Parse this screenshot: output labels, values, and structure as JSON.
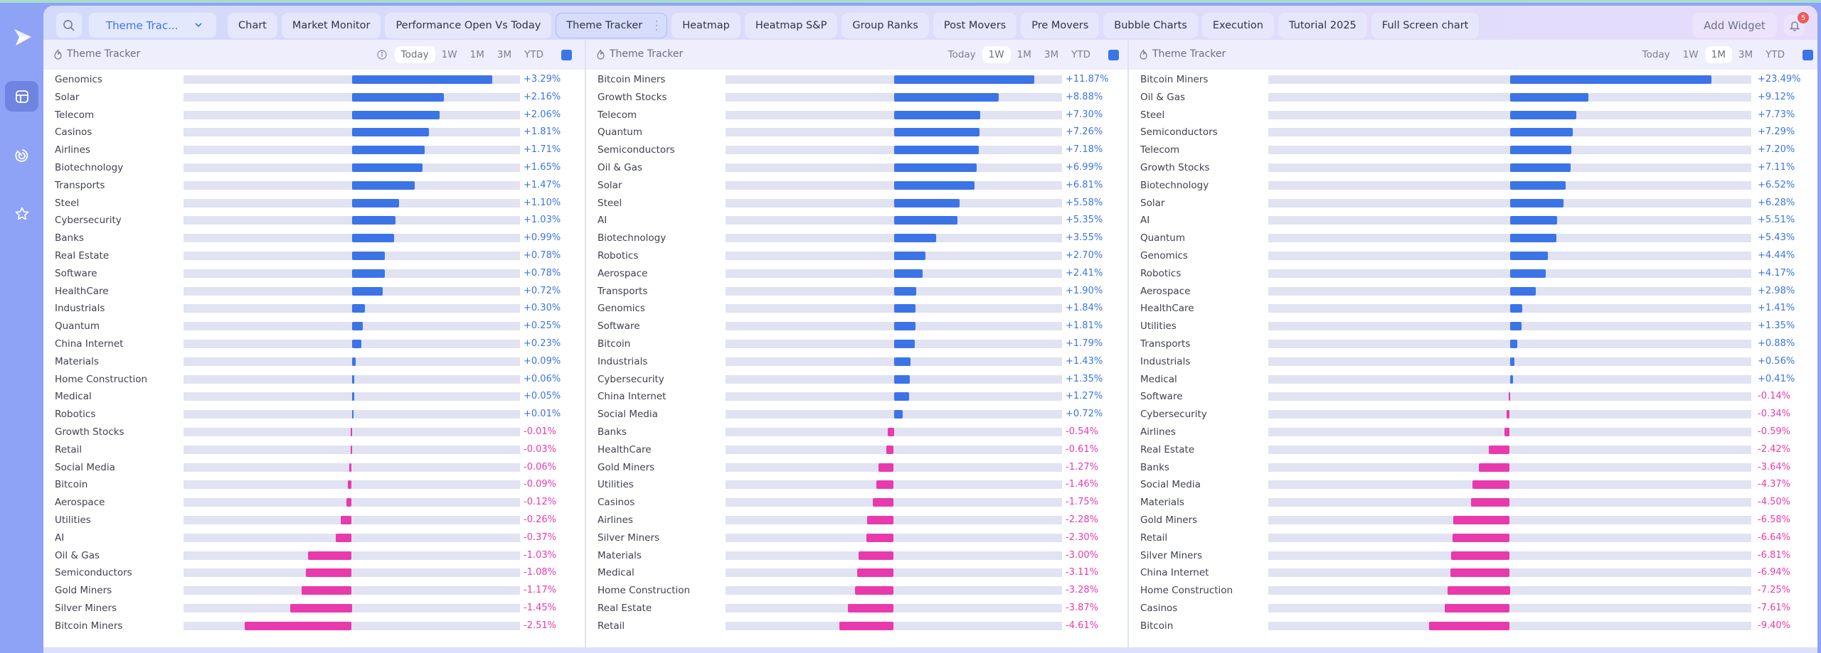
{
  "colors": {
    "positive": "#3b74e6",
    "negative": "#e83aad",
    "accent": "#3d74e6",
    "track": "#e1e2f2",
    "badge": "#ef5a5a"
  },
  "sidebar": {
    "logo": "play-logo-icon",
    "items": [
      {
        "icon": "layout-grid-icon",
        "active": true
      },
      {
        "icon": "radar-icon",
        "active": false
      },
      {
        "icon": "star-icon",
        "active": false
      }
    ]
  },
  "header": {
    "search_icon": "search-icon",
    "dropdown_label": "Theme Trac...",
    "tabs": [
      {
        "label": "Chart"
      },
      {
        "label": "Market Monitor"
      },
      {
        "label": "Performance Open Vs Today"
      },
      {
        "label": "Theme Tracker",
        "active": true
      },
      {
        "label": "Heatmap"
      },
      {
        "label": "Heatmap S&P"
      },
      {
        "label": "Group Ranks"
      },
      {
        "label": "Post Movers"
      },
      {
        "label": "Pre Movers"
      },
      {
        "label": "Bubble Charts"
      },
      {
        "label": "Execution"
      },
      {
        "label": "Tutorial 2025"
      },
      {
        "label": "Full Screen chart"
      }
    ],
    "add_widget_label": "Add Widget",
    "notification_count": "5"
  },
  "panels": [
    {
      "title": "Theme Tracker",
      "periods": [
        "Today",
        "1W",
        "1M",
        "3M",
        "YTD"
      ],
      "active_period": "Today",
      "show_info": true,
      "rows": [
        {
          "name": "Genomics",
          "value": 3.29,
          "label": "+3.29%"
        },
        {
          "name": "Solar",
          "value": 2.16,
          "label": "+2.16%"
        },
        {
          "name": "Telecom",
          "value": 2.06,
          "label": "+2.06%"
        },
        {
          "name": "Casinos",
          "value": 1.81,
          "label": "+1.81%"
        },
        {
          "name": "Airlines",
          "value": 1.71,
          "label": "+1.71%"
        },
        {
          "name": "Biotechnology",
          "value": 1.65,
          "label": "+1.65%"
        },
        {
          "name": "Transports",
          "value": 1.47,
          "label": "+1.47%"
        },
        {
          "name": "Steel",
          "value": 1.1,
          "label": "+1.10%"
        },
        {
          "name": "Cybersecurity",
          "value": 1.03,
          "label": "+1.03%"
        },
        {
          "name": "Banks",
          "value": 0.99,
          "label": "+0.99%"
        },
        {
          "name": "Real Estate",
          "value": 0.78,
          "label": "+0.78%"
        },
        {
          "name": "Software",
          "value": 0.78,
          "label": "+0.78%"
        },
        {
          "name": "HealthCare",
          "value": 0.72,
          "label": "+0.72%"
        },
        {
          "name": "Industrials",
          "value": 0.3,
          "label": "+0.30%"
        },
        {
          "name": "Quantum",
          "value": 0.25,
          "label": "+0.25%"
        },
        {
          "name": "China Internet",
          "value": 0.23,
          "label": "+0.23%"
        },
        {
          "name": "Materials",
          "value": 0.09,
          "label": "+0.09%"
        },
        {
          "name": "Home Construction",
          "value": 0.06,
          "label": "+0.06%"
        },
        {
          "name": "Medical",
          "value": 0.05,
          "label": "+0.05%"
        },
        {
          "name": "Robotics",
          "value": 0.01,
          "label": "+0.01%"
        },
        {
          "name": "Growth Stocks",
          "value": -0.01,
          "label": "-0.01%"
        },
        {
          "name": "Retail",
          "value": -0.03,
          "label": "-0.03%"
        },
        {
          "name": "Social Media",
          "value": -0.06,
          "label": "-0.06%"
        },
        {
          "name": "Bitcoin",
          "value": -0.09,
          "label": "-0.09%"
        },
        {
          "name": "Aerospace",
          "value": -0.12,
          "label": "-0.12%"
        },
        {
          "name": "Utilities",
          "value": -0.26,
          "label": "-0.26%"
        },
        {
          "name": "AI",
          "value": -0.37,
          "label": "-0.37%"
        },
        {
          "name": "Oil & Gas",
          "value": -1.03,
          "label": "-1.03%"
        },
        {
          "name": "Semiconductors",
          "value": -1.08,
          "label": "-1.08%"
        },
        {
          "name": "Gold Miners",
          "value": -1.17,
          "label": "-1.17%"
        },
        {
          "name": "Silver Miners",
          "value": -1.45,
          "label": "-1.45%"
        },
        {
          "name": "Bitcoin Miners",
          "value": -2.51,
          "label": "-2.51%"
        }
      ]
    },
    {
      "title": "Theme Tracker",
      "periods": [
        "Today",
        "1W",
        "1M",
        "3M",
        "YTD"
      ],
      "active_period": "1W",
      "show_info": false,
      "rows": [
        {
          "name": "Bitcoin Miners",
          "value": 11.87,
          "label": "+11.87%"
        },
        {
          "name": "Growth Stocks",
          "value": 8.88,
          "label": "+8.88%"
        },
        {
          "name": "Telecom",
          "value": 7.3,
          "label": "+7.30%"
        },
        {
          "name": "Quantum",
          "value": 7.26,
          "label": "+7.26%"
        },
        {
          "name": "Semiconductors",
          "value": 7.18,
          "label": "+7.18%"
        },
        {
          "name": "Oil & Gas",
          "value": 6.99,
          "label": "+6.99%"
        },
        {
          "name": "Solar",
          "value": 6.81,
          "label": "+6.81%"
        },
        {
          "name": "Steel",
          "value": 5.58,
          "label": "+5.58%"
        },
        {
          "name": "AI",
          "value": 5.35,
          "label": "+5.35%"
        },
        {
          "name": "Biotechnology",
          "value": 3.55,
          "label": "+3.55%"
        },
        {
          "name": "Robotics",
          "value": 2.7,
          "label": "+2.70%"
        },
        {
          "name": "Aerospace",
          "value": 2.41,
          "label": "+2.41%"
        },
        {
          "name": "Transports",
          "value": 1.9,
          "label": "+1.90%"
        },
        {
          "name": "Genomics",
          "value": 1.84,
          "label": "+1.84%"
        },
        {
          "name": "Software",
          "value": 1.81,
          "label": "+1.81%"
        },
        {
          "name": "Bitcoin",
          "value": 1.79,
          "label": "+1.79%"
        },
        {
          "name": "Industrials",
          "value": 1.43,
          "label": "+1.43%"
        },
        {
          "name": "Cybersecurity",
          "value": 1.35,
          "label": "+1.35%"
        },
        {
          "name": "China Internet",
          "value": 1.27,
          "label": "+1.27%"
        },
        {
          "name": "Social Media",
          "value": 0.72,
          "label": "+0.72%"
        },
        {
          "name": "Banks",
          "value": -0.54,
          "label": "-0.54%"
        },
        {
          "name": "HealthCare",
          "value": -0.61,
          "label": "-0.61%"
        },
        {
          "name": "Gold Miners",
          "value": -1.27,
          "label": "-1.27%"
        },
        {
          "name": "Utilities",
          "value": -1.46,
          "label": "-1.46%"
        },
        {
          "name": "Casinos",
          "value": -1.75,
          "label": "-1.75%"
        },
        {
          "name": "Airlines",
          "value": -2.28,
          "label": "-2.28%"
        },
        {
          "name": "Silver Miners",
          "value": -2.3,
          "label": "-2.30%"
        },
        {
          "name": "Materials",
          "value": -3.0,
          "label": "-3.00%"
        },
        {
          "name": "Medical",
          "value": -3.11,
          "label": "-3.11%"
        },
        {
          "name": "Home Construction",
          "value": -3.28,
          "label": "-3.28%"
        },
        {
          "name": "Real Estate",
          "value": -3.87,
          "label": "-3.87%"
        },
        {
          "name": "Retail",
          "value": -4.61,
          "label": "-4.61%"
        }
      ]
    },
    {
      "title": "Theme Tracker",
      "periods": [
        "Today",
        "1W",
        "1M",
        "3M",
        "YTD"
      ],
      "active_period": "1M",
      "show_info": false,
      "rows": [
        {
          "name": "Bitcoin Miners",
          "value": 23.49,
          "label": "+23.49%"
        },
        {
          "name": "Oil & Gas",
          "value": 9.12,
          "label": "+9.12%"
        },
        {
          "name": "Steel",
          "value": 7.73,
          "label": "+7.73%"
        },
        {
          "name": "Semiconductors",
          "value": 7.29,
          "label": "+7.29%"
        },
        {
          "name": "Telecom",
          "value": 7.2,
          "label": "+7.20%"
        },
        {
          "name": "Growth Stocks",
          "value": 7.11,
          "label": "+7.11%"
        },
        {
          "name": "Biotechnology",
          "value": 6.52,
          "label": "+6.52%"
        },
        {
          "name": "Solar",
          "value": 6.28,
          "label": "+6.28%"
        },
        {
          "name": "AI",
          "value": 5.51,
          "label": "+5.51%"
        },
        {
          "name": "Quantum",
          "value": 5.43,
          "label": "+5.43%"
        },
        {
          "name": "Genomics",
          "value": 4.44,
          "label": "+4.44%"
        },
        {
          "name": "Robotics",
          "value": 4.17,
          "label": "+4.17%"
        },
        {
          "name": "Aerospace",
          "value": 2.98,
          "label": "+2.98%"
        },
        {
          "name": "HealthCare",
          "value": 1.41,
          "label": "+1.41%"
        },
        {
          "name": "Utilities",
          "value": 1.35,
          "label": "+1.35%"
        },
        {
          "name": "Transports",
          "value": 0.88,
          "label": "+0.88%"
        },
        {
          "name": "Industrials",
          "value": 0.56,
          "label": "+0.56%"
        },
        {
          "name": "Medical",
          "value": 0.41,
          "label": "+0.41%"
        },
        {
          "name": "Software",
          "value": -0.14,
          "label": "-0.14%"
        },
        {
          "name": "Cybersecurity",
          "value": -0.34,
          "label": "-0.34%"
        },
        {
          "name": "Airlines",
          "value": -0.59,
          "label": "-0.59%"
        },
        {
          "name": "Real Estate",
          "value": -2.42,
          "label": "-2.42%"
        },
        {
          "name": "Banks",
          "value": -3.64,
          "label": "-3.64%"
        },
        {
          "name": "Social Media",
          "value": -4.37,
          "label": "-4.37%"
        },
        {
          "name": "Materials",
          "value": -4.5,
          "label": "-4.50%"
        },
        {
          "name": "Gold Miners",
          "value": -6.58,
          "label": "-6.58%"
        },
        {
          "name": "Retail",
          "value": -6.64,
          "label": "-6.64%"
        },
        {
          "name": "Silver Miners",
          "value": -6.81,
          "label": "-6.81%"
        },
        {
          "name": "China Internet",
          "value": -6.94,
          "label": "-6.94%"
        },
        {
          "name": "Home Construction",
          "value": -7.25,
          "label": "-7.25%"
        },
        {
          "name": "Casinos",
          "value": -7.61,
          "label": "-7.61%"
        },
        {
          "name": "Bitcoin",
          "value": -9.4,
          "label": "-9.40%"
        }
      ]
    }
  ]
}
